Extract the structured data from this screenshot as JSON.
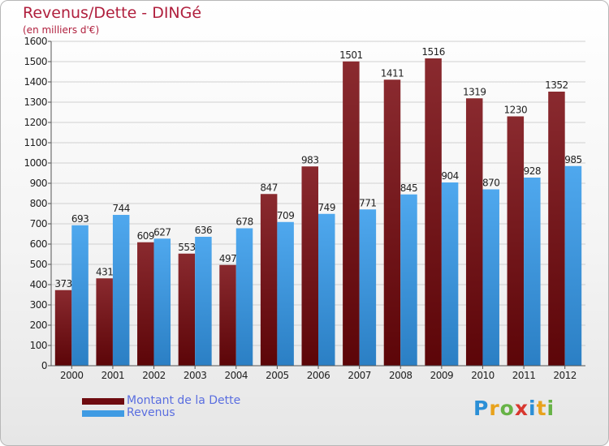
{
  "header": {
    "title": "Revenus/Dette - DINGé",
    "subtitle": "(en milliers d'€)"
  },
  "legend": {
    "items": [
      {
        "label": "Montant de la Dette",
        "color": "#6e0a0f"
      },
      {
        "label": "Revenus",
        "color": "#3f9be3"
      }
    ]
  },
  "logo": {
    "text": "Proxiti",
    "letters": [
      {
        "ch": "P",
        "color": "#2b8fd6"
      },
      {
        "ch": "r",
        "color": "#e8a21c"
      },
      {
        "ch": "o",
        "color": "#67b346"
      },
      {
        "ch": "x",
        "color": "#d8372f"
      },
      {
        "ch": "i",
        "color": "#2b8fd6"
      },
      {
        "ch": "t",
        "color": "#e8a21c"
      },
      {
        "ch": "i",
        "color": "#67b346"
      }
    ]
  },
  "chart_data": {
    "type": "bar",
    "title": "Revenus/Dette - DINGé",
    "subtitle": "(en milliers d'€)",
    "categories": [
      "2000",
      "2001",
      "2002",
      "2003",
      "2004",
      "2005",
      "2006",
      "2007",
      "2008",
      "2009",
      "2010",
      "2011",
      "2012"
    ],
    "series": [
      {
        "name": "Montant de la Dette",
        "color": "#7a1a1f",
        "values": [
          373,
          431,
          609,
          553,
          497,
          847,
          983,
          1501,
          1411,
          1516,
          1319,
          1230,
          1352
        ]
      },
      {
        "name": "Revenus",
        "color": "#3f9be3",
        "values": [
          693,
          744,
          627,
          636,
          678,
          709,
          749,
          771,
          845,
          904,
          870,
          928,
          985
        ]
      }
    ],
    "ylim": [
      0,
      1600
    ],
    "yticks": [
      0,
      100,
      200,
      300,
      400,
      500,
      600,
      700,
      800,
      900,
      1000,
      1100,
      1200,
      1300,
      1400,
      1500,
      1600
    ],
    "grid": true,
    "legend_position": "bottom-left"
  }
}
